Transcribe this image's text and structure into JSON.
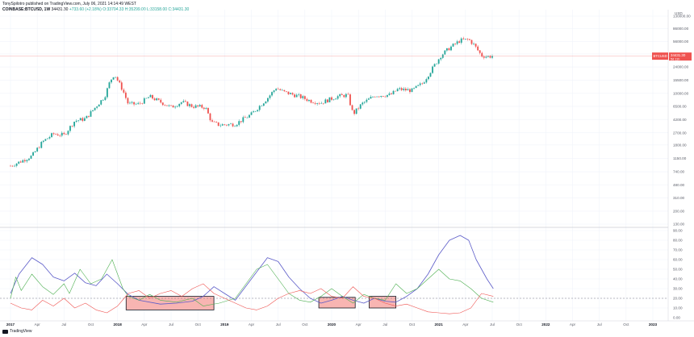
{
  "header": {
    "line1": "TonySpilotro published on TradingView.com, July 06, 2021 14:14:49 WEST",
    "symbol": "COINBASE:BTCUSD, 1W",
    "price": "34431.30",
    "change": "+733.60 (+2.18%)",
    "ohlc_o": "O:33704.33",
    "ohlc_h": "H:35299.00",
    "ohlc_l": "L:33158.00",
    "ohlc_c": "C:34431.30"
  },
  "axis_badge": {
    "pair": "BTCUSD",
    "price": "34431.30",
    "sub": "5d 11h"
  },
  "y_axis_currency": "USD",
  "footer": {
    "brand": "TradingView"
  },
  "colors": {
    "up": "#26a69a",
    "down": "#ef5350",
    "adx": "#5b5bc8",
    "di_plus": "#4caf50",
    "di_minus": "#ef5350",
    "box_fill": "#f7a8a4",
    "price_line": "#ef5350"
  },
  "chart_data": [
    {
      "type": "candlestick",
      "title": "",
      "scale": "log",
      "x_ticks": [
        "2017",
        "Apr",
        "Jul",
        "Oct",
        "2018",
        "Apr",
        "Jul",
        "Oct",
        "2019",
        "Apr",
        "Jul",
        "Oct",
        "2020",
        "Apr",
        "Jul",
        "Oct",
        "2021",
        "Apr",
        "Jul",
        "Oct",
        "2022",
        "Apr",
        "Jul",
        "Oct",
        "2023"
      ],
      "y_ticks": [
        130,
        200,
        310,
        480,
        740,
        1150,
        1800,
        2700,
        4200,
        6500,
        10000,
        15500,
        24000,
        37000,
        56000,
        86000,
        130000
      ],
      "y_tick_labels": [
        "130.00",
        "200.00",
        "310.00",
        "480.00",
        "740.00",
        "1150.00",
        "1800.00",
        "2700.00",
        "4200.00",
        "6500.00",
        "10000.00",
        "15500.00",
        "24000.00",
        "37000.00",
        "56000.00",
        "86000.00",
        "130000.00"
      ],
      "last_price": 34431.3,
      "weekly_closes": [
        {
          "t": 2017.0,
          "c": 900
        },
        {
          "t": 2017.1,
          "c": 1050
        },
        {
          "t": 2017.2,
          "c": 1250
        },
        {
          "t": 2017.3,
          "c": 2000
        },
        {
          "t": 2017.4,
          "c": 2600
        },
        {
          "t": 2017.5,
          "c": 2500
        },
        {
          "t": 2017.6,
          "c": 4000
        },
        {
          "t": 2017.7,
          "c": 4300
        },
        {
          "t": 2017.8,
          "c": 6500
        },
        {
          "t": 2017.88,
          "c": 9000
        },
        {
          "t": 2017.93,
          "c": 15000
        },
        {
          "t": 2017.97,
          "c": 19000
        },
        {
          "t": 2018.05,
          "c": 11000
        },
        {
          "t": 2018.1,
          "c": 7000
        },
        {
          "t": 2018.2,
          "c": 7000
        },
        {
          "t": 2018.3,
          "c": 9000
        },
        {
          "t": 2018.4,
          "c": 7500
        },
        {
          "t": 2018.5,
          "c": 6300
        },
        {
          "t": 2018.6,
          "c": 7500
        },
        {
          "t": 2018.7,
          "c": 6500
        },
        {
          "t": 2018.82,
          "c": 6300
        },
        {
          "t": 2018.88,
          "c": 3800
        },
        {
          "t": 2018.95,
          "c": 3500
        },
        {
          "t": 2019.1,
          "c": 3600
        },
        {
          "t": 2019.25,
          "c": 5000
        },
        {
          "t": 2019.4,
          "c": 8500
        },
        {
          "t": 2019.48,
          "c": 12000
        },
        {
          "t": 2019.55,
          "c": 10500
        },
        {
          "t": 2019.7,
          "c": 9000
        },
        {
          "t": 2019.8,
          "c": 7800
        },
        {
          "t": 2019.9,
          "c": 7300
        },
        {
          "t": 2020.05,
          "c": 9000
        },
        {
          "t": 2020.15,
          "c": 9500
        },
        {
          "t": 2020.2,
          "c": 5000
        },
        {
          "t": 2020.28,
          "c": 7000
        },
        {
          "t": 2020.4,
          "c": 9300
        },
        {
          "t": 2020.55,
          "c": 9500
        },
        {
          "t": 2020.62,
          "c": 11500
        },
        {
          "t": 2020.75,
          "c": 11000
        },
        {
          "t": 2020.85,
          "c": 14000
        },
        {
          "t": 2020.95,
          "c": 24000
        },
        {
          "t": 2021.02,
          "c": 35000
        },
        {
          "t": 2021.1,
          "c": 45000
        },
        {
          "t": 2021.2,
          "c": 58000
        },
        {
          "t": 2021.28,
          "c": 60000
        },
        {
          "t": 2021.33,
          "c": 50000
        },
        {
          "t": 2021.4,
          "c": 35000
        },
        {
          "t": 2021.45,
          "c": 34000
        },
        {
          "t": 2021.51,
          "c": 34431.3
        }
      ]
    },
    {
      "type": "line",
      "title": "",
      "ylim": [
        0,
        90
      ],
      "y_ticks": [
        0,
        10,
        20,
        30,
        40,
        50,
        60,
        70,
        80,
        90
      ],
      "y_tick_labels": [
        "0.00",
        "10.00",
        "20.00",
        "30.00",
        "40.00",
        "50.00",
        "60.00",
        "70.00",
        "80.00",
        "90.00"
      ],
      "threshold": 20,
      "series": [
        {
          "key": "adx",
          "points": [
            [
              2017.0,
              25
            ],
            [
              2017.08,
              45
            ],
            [
              2017.2,
              62
            ],
            [
              2017.3,
              55
            ],
            [
              2017.4,
              42
            ],
            [
              2017.5,
              38
            ],
            [
              2017.6,
              46
            ],
            [
              2017.7,
              36
            ],
            [
              2017.8,
              33
            ],
            [
              2017.9,
              45
            ],
            [
              2018.0,
              35
            ],
            [
              2018.1,
              24
            ],
            [
              2018.2,
              18
            ],
            [
              2018.4,
              14
            ],
            [
              2018.55,
              15
            ],
            [
              2018.7,
              17
            ],
            [
              2018.8,
              22
            ],
            [
              2018.9,
              32
            ],
            [
              2019.0,
              25
            ],
            [
              2019.1,
              18
            ],
            [
              2019.25,
              40
            ],
            [
              2019.4,
              62
            ],
            [
              2019.5,
              58
            ],
            [
              2019.6,
              42
            ],
            [
              2019.7,
              30
            ],
            [
              2019.8,
              20
            ],
            [
              2019.9,
              15
            ],
            [
              2020.0,
              18
            ],
            [
              2020.1,
              22
            ],
            [
              2020.2,
              18
            ],
            [
              2020.3,
              15
            ],
            [
              2020.4,
              20
            ],
            [
              2020.5,
              17
            ],
            [
              2020.6,
              16
            ],
            [
              2020.7,
              22
            ],
            [
              2020.8,
              30
            ],
            [
              2020.9,
              45
            ],
            [
              2021.0,
              65
            ],
            [
              2021.1,
              80
            ],
            [
              2021.2,
              85
            ],
            [
              2021.28,
              80
            ],
            [
              2021.35,
              60
            ],
            [
              2021.45,
              40
            ],
            [
              2021.51,
              30
            ]
          ]
        },
        {
          "key": "di_plus",
          "points": [
            [
              2017.0,
              20
            ],
            [
              2017.05,
              42
            ],
            [
              2017.1,
              28
            ],
            [
              2017.2,
              45
            ],
            [
              2017.3,
              32
            ],
            [
              2017.4,
              24
            ],
            [
              2017.5,
              35
            ],
            [
              2017.55,
              25
            ],
            [
              2017.65,
              50
            ],
            [
              2017.75,
              35
            ],
            [
              2017.85,
              40
            ],
            [
              2017.95,
              60
            ],
            [
              2018.05,
              30
            ],
            [
              2018.1,
              22
            ],
            [
              2018.2,
              18
            ],
            [
              2018.3,
              24
            ],
            [
              2018.4,
              18
            ],
            [
              2018.55,
              16
            ],
            [
              2018.7,
              20
            ],
            [
              2018.8,
              12
            ],
            [
              2018.95,
              15
            ],
            [
              2019.1,
              20
            ],
            [
              2019.2,
              35
            ],
            [
              2019.3,
              50
            ],
            [
              2019.4,
              55
            ],
            [
              2019.5,
              40
            ],
            [
              2019.6,
              25
            ],
            [
              2019.7,
              18
            ],
            [
              2019.8,
              16
            ],
            [
              2019.9,
              22
            ],
            [
              2020.0,
              30
            ],
            [
              2020.1,
              22
            ],
            [
              2020.2,
              15
            ],
            [
              2020.3,
              24
            ],
            [
              2020.4,
              20
            ],
            [
              2020.5,
              18
            ],
            [
              2020.6,
              35
            ],
            [
              2020.7,
              25
            ],
            [
              2020.8,
              30
            ],
            [
              2020.9,
              40
            ],
            [
              2021.0,
              50
            ],
            [
              2021.1,
              40
            ],
            [
              2021.2,
              38
            ],
            [
              2021.3,
              30
            ],
            [
              2021.4,
              20
            ],
            [
              2021.51,
              16
            ]
          ]
        },
        {
          "key": "di_minus",
          "points": [
            [
              2017.0,
              15
            ],
            [
              2017.1,
              10
            ],
            [
              2017.2,
              8
            ],
            [
              2017.3,
              18
            ],
            [
              2017.4,
              12
            ],
            [
              2017.5,
              20
            ],
            [
              2017.6,
              10
            ],
            [
              2017.7,
              15
            ],
            [
              2017.8,
              8
            ],
            [
              2017.9,
              5
            ],
            [
              2018.0,
              12
            ],
            [
              2018.1,
              25
            ],
            [
              2018.2,
              28
            ],
            [
              2018.3,
              20
            ],
            [
              2018.4,
              25
            ],
            [
              2018.5,
              28
            ],
            [
              2018.6,
              22
            ],
            [
              2018.7,
              30
            ],
            [
              2018.8,
              35
            ],
            [
              2018.9,
              25
            ],
            [
              2019.0,
              20
            ],
            [
              2019.1,
              15
            ],
            [
              2019.2,
              10
            ],
            [
              2019.3,
              8
            ],
            [
              2019.4,
              12
            ],
            [
              2019.5,
              20
            ],
            [
              2019.6,
              25
            ],
            [
              2019.7,
              28
            ],
            [
              2019.8,
              25
            ],
            [
              2019.9,
              30
            ],
            [
              2020.0,
              22
            ],
            [
              2020.1,
              20
            ],
            [
              2020.2,
              32
            ],
            [
              2020.3,
              22
            ],
            [
              2020.4,
              20
            ],
            [
              2020.5,
              15
            ],
            [
              2020.6,
              12
            ],
            [
              2020.7,
              14
            ],
            [
              2020.8,
              10
            ],
            [
              2020.9,
              6
            ],
            [
              2021.0,
              5
            ],
            [
              2021.1,
              4
            ],
            [
              2021.2,
              5
            ],
            [
              2021.3,
              10
            ],
            [
              2021.4,
              25
            ],
            [
              2021.51,
              22
            ]
          ]
        }
      ],
      "boxes": [
        {
          "from": 2018.08,
          "to": 2018.9,
          "y_low": 8,
          "y_high": 22
        },
        {
          "from": 2019.88,
          "to": 2020.22,
          "y_low": 10,
          "y_high": 21
        },
        {
          "from": 2020.35,
          "to": 2020.6,
          "y_low": 10,
          "y_high": 22
        }
      ]
    }
  ]
}
